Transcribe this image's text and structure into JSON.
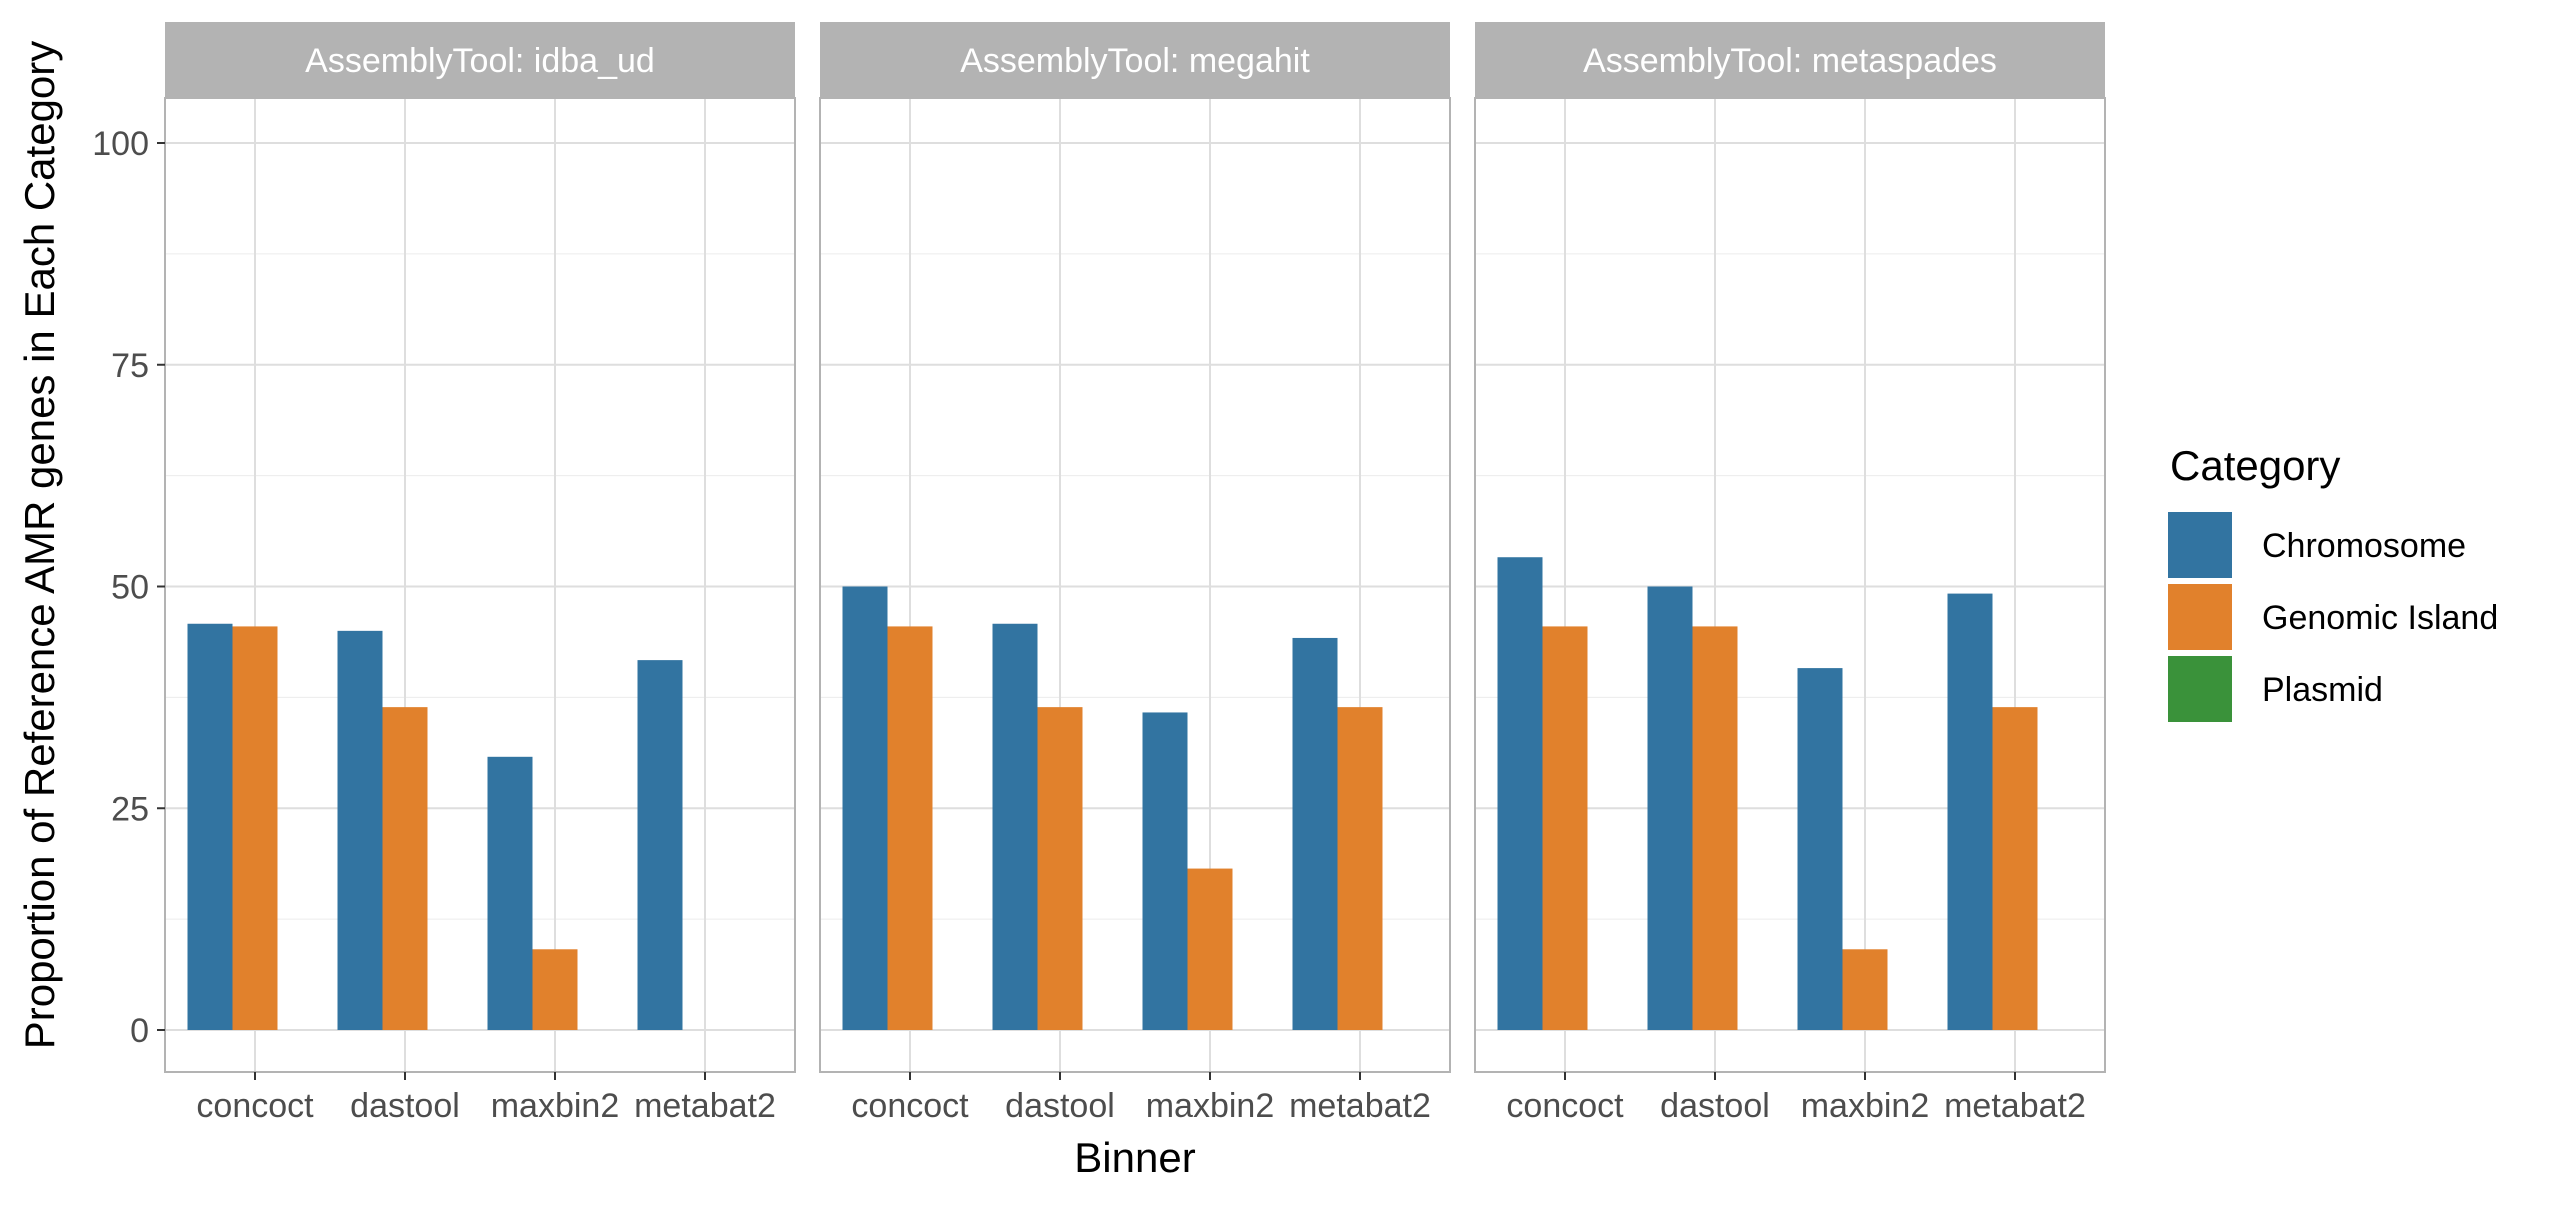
{
  "chart_data": {
    "type": "bar",
    "facet_label_prefix": "AssemblyTool: ",
    "facets": [
      "idba_ud",
      "megahit",
      "metaspades"
    ],
    "categories": [
      "concoct",
      "dastool",
      "maxbin2",
      "metabat2"
    ],
    "series": [
      {
        "name": "Chromosome",
        "color": "#3274a1",
        "values": {
          "idba_ud": [
            45.8,
            45.0,
            30.8,
            41.7
          ],
          "megahit": [
            50.0,
            45.8,
            35.8,
            44.2
          ],
          "metaspades": [
            53.3,
            50.0,
            40.8,
            49.2
          ]
        }
      },
      {
        "name": "Genomic Island",
        "color": "#e1812c",
        "values": {
          "idba_ud": [
            45.5,
            36.4,
            9.1,
            0
          ],
          "megahit": [
            45.5,
            36.4,
            18.2,
            36.4
          ],
          "metaspades": [
            45.5,
            45.5,
            9.1,
            36.4
          ]
        }
      },
      {
        "name": "Plasmid",
        "color": "#3a923a",
        "values": {
          "idba_ud": [
            0,
            0,
            0,
            0
          ],
          "megahit": [
            0,
            0,
            0,
            0
          ],
          "metaspades": [
            0,
            0,
            0,
            0
          ]
        }
      }
    ],
    "xlabel": "Binner",
    "ylabel": "Proportion of Reference AMR genes in Each Category",
    "ylim": [
      0,
      100
    ],
    "yticks": [
      0,
      25,
      50,
      75,
      100
    ],
    "grid": true,
    "legend": {
      "title": "Category",
      "position": "right"
    }
  }
}
